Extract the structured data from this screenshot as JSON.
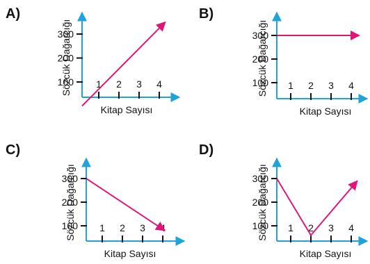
{
  "colors": {
    "axis": "#1fa3d8",
    "series": "#e0157a",
    "ink": "#111111"
  },
  "chart_data": [
    {
      "option": "A)",
      "type": "line",
      "xlabel": "Kitap Sayısı",
      "ylabel": "Sözcük Dağarcığı",
      "x_ticks": [
        "1",
        "2",
        "3",
        "4"
      ],
      "y_ticks": [
        "100",
        "200",
        "300"
      ],
      "series": [
        {
          "points": [
            [
              0,
              0
            ],
            [
              4.3,
              350
            ]
          ]
        }
      ]
    },
    {
      "option": "B)",
      "type": "line",
      "xlabel": "Kitap Sayısı",
      "ylabel": "Sözcük Dağarcığı",
      "x_ticks": [
        "1",
        "2",
        "3",
        "4"
      ],
      "y_ticks": [
        "100",
        "200",
        "300"
      ],
      "series": [
        {
          "points": [
            [
              0,
              300
            ],
            [
              4.4,
              300
            ]
          ]
        }
      ]
    },
    {
      "option": "C)",
      "type": "line",
      "xlabel": "Kitap Sayısı",
      "ylabel": "Sözcük Dağarcığı",
      "x_ticks": [
        "1",
        "2",
        "3",
        "4"
      ],
      "y_ticks": [
        "100",
        "200",
        "300"
      ],
      "series": [
        {
          "points": [
            [
              0,
              300
            ],
            [
              4.1,
              80
            ]
          ]
        }
      ]
    },
    {
      "option": "D)",
      "type": "line",
      "xlabel": "Kitap Sayısı",
      "ylabel": "Sözcük Dağarcığı",
      "x_ticks": [
        "1",
        "2",
        "3",
        "4"
      ],
      "y_ticks": [
        "100",
        "200",
        "300"
      ],
      "series": [
        {
          "points": [
            [
              0,
              300
            ],
            [
              2,
              60
            ],
            [
              4.3,
              290
            ]
          ]
        }
      ]
    }
  ]
}
